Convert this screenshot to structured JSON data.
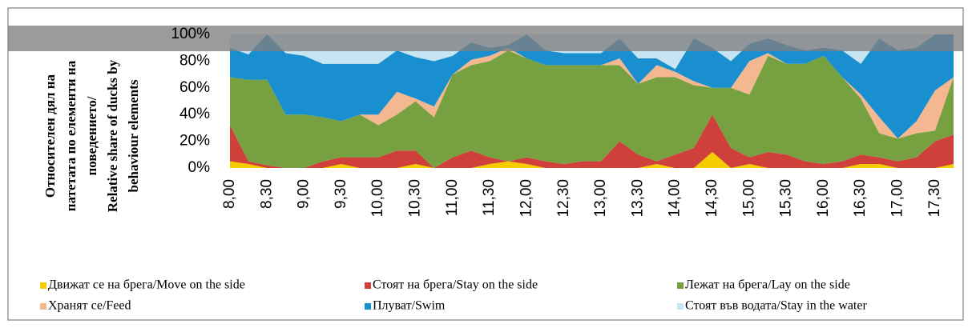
{
  "chart_data": {
    "type": "stacked_area",
    "ylabel": [
      "Относителен дял на",
      "патетата по елементи на",
      "поведението/",
      "Relative share of ducks by",
      "behaviour elements"
    ],
    "categories": [
      "8,00",
      null,
      "8,30",
      null,
      "9,00",
      null,
      "9,30",
      null,
      "10,00",
      null,
      "10,30",
      null,
      "11,00",
      null,
      "11,30",
      null,
      "12,00",
      null,
      "12,30",
      null,
      "13,00",
      null,
      "13,30",
      null,
      "14,00",
      null,
      "14,30",
      null,
      "15,00",
      null,
      "15,30",
      null,
      "16,00",
      null,
      "16,30",
      null,
      "17,00",
      null,
      "17,30",
      null
    ],
    "ylim": [
      0,
      100
    ],
    "yticks": [
      {
        "value": 0,
        "label": "0%"
      },
      {
        "value": 20,
        "label": "20%"
      },
      {
        "value": 40,
        "label": "40%"
      },
      {
        "value": 60,
        "label": "60%"
      },
      {
        "value": 80,
        "label": "80%"
      },
      {
        "value": 100,
        "label": "100%"
      }
    ],
    "series": [
      {
        "name": "Движат се на брега/Move on the side",
        "color": "#f5cc00",
        "values": [
          5,
          3,
          0,
          0,
          0,
          0,
          3,
          0,
          0,
          0,
          3,
          0,
          0,
          0,
          3,
          5,
          3,
          0,
          0,
          0,
          0,
          0,
          0,
          3,
          0,
          0,
          12,
          0,
          3,
          0,
          0,
          0,
          0,
          0,
          3,
          3,
          0,
          0,
          0,
          3
        ]
      },
      {
        "name": "Стоят на брега/Stay on the side",
        "color": "#d0403a",
        "values": [
          27,
          2,
          2,
          0,
          0,
          5,
          5,
          8,
          8,
          13,
          10,
          0,
          8,
          13,
          5,
          0,
          5,
          5,
          3,
          5,
          5,
          20,
          10,
          2,
          10,
          15,
          28,
          15,
          5,
          12,
          10,
          5,
          3,
          5,
          7,
          5,
          5,
          8,
          20,
          22
        ]
      },
      {
        "name": "Лежат на брега/Lay on the side",
        "color": "#77a040",
        "values": [
          36,
          61,
          64,
          40,
          40,
          33,
          27,
          32,
          24,
          27,
          37,
          38,
          62,
          64,
          72,
          83,
          74,
          72,
          74,
          72,
          72,
          57,
          53,
          63,
          58,
          47,
          20,
          45,
          47,
          72,
          68,
          73,
          81,
          63,
          42,
          18,
          17,
          18,
          8,
          43
        ]
      },
      {
        "name": "Хранят се/Feed",
        "color": "#f4b890",
        "values": [
          0,
          0,
          0,
          0,
          0,
          0,
          0,
          0,
          8,
          17,
          2,
          8,
          0,
          4,
          4,
          2,
          0,
          0,
          0,
          0,
          0,
          5,
          0,
          9,
          4,
          3,
          0,
          0,
          25,
          2,
          0,
          0,
          0,
          0,
          3,
          12,
          0,
          9,
          30,
          0
        ]
      },
      {
        "name": "Плуват/Swim",
        "color": "#1a8fd0",
        "values": [
          22,
          19,
          34,
          46,
          44,
          40,
          43,
          38,
          38,
          31,
          31,
          34,
          14,
          13,
          6,
          2,
          18,
          11,
          9,
          9,
          9,
          15,
          19,
          5,
          2,
          32,
          30,
          20,
          13,
          11,
          14,
          10,
          6,
          20,
          23,
          59,
          66,
          55,
          42,
          32
        ]
      },
      {
        "name": "Стоят във водата/Stay in the water",
        "color": "#c6e4f2",
        "values": [
          10,
          15,
          0,
          14,
          16,
          22,
          22,
          22,
          22,
          12,
          17,
          20,
          16,
          6,
          10,
          8,
          0,
          12,
          14,
          14,
          14,
          3,
          18,
          18,
          26,
          3,
          10,
          20,
          7,
          3,
          8,
          12,
          10,
          12,
          22,
          3,
          12,
          10,
          0,
          0
        ]
      }
    ]
  }
}
